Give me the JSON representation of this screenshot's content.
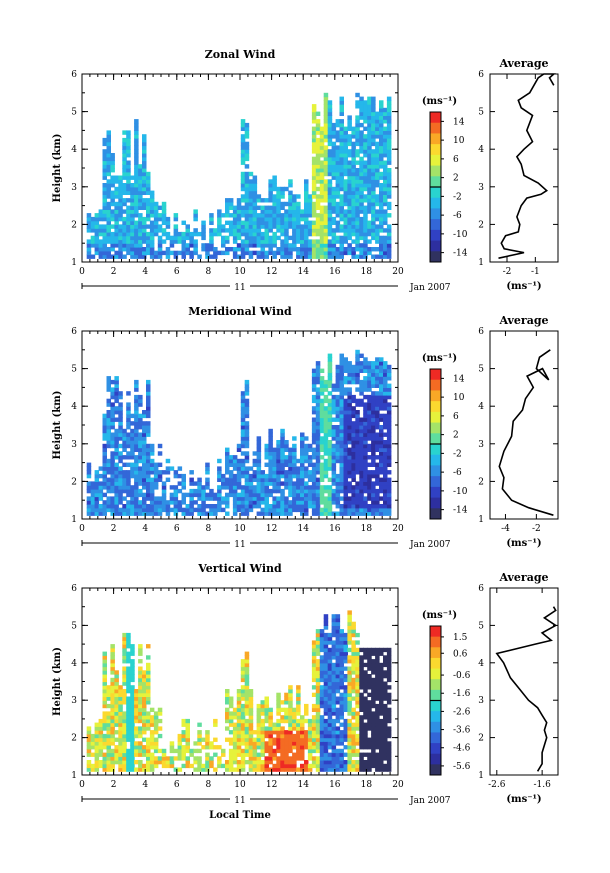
{
  "chart_data": [
    {
      "type": "heatmap",
      "title": "Zonal Wind",
      "ylabel": "Height (km)",
      "y_ticks": [
        "1",
        "2",
        "3",
        "4",
        "5",
        "6"
      ],
      "ylim": [
        1,
        6
      ],
      "x_ticks": [
        "0",
        "2",
        "4",
        "6",
        "8",
        "10",
        "12",
        "14",
        "16",
        "18",
        "20"
      ],
      "xlim": [
        0,
        20
      ],
      "date_label": "11",
      "date_suffix": "Jan 2007",
      "colorbar": {
        "unit": "(ms⁻¹)",
        "ticks": [
          "14",
          "10",
          "6",
          "2",
          "-2",
          "-6",
          "-10",
          "-14"
        ],
        "range": [
          -16,
          16
        ]
      },
      "profile": {
        "title": "Average",
        "x_ticks": [
          "-2",
          "-1"
        ],
        "xlim": [
          -2.6,
          -0.2
        ],
        "xlabel": "(ms⁻¹)",
        "y_ticks": [
          "1",
          "2",
          "3",
          "4",
          "5",
          "6"
        ],
        "points": [
          [
            -2.3,
            1.1
          ],
          [
            -1.4,
            1.25
          ],
          [
            -2.1,
            1.35
          ],
          [
            -2.2,
            1.5
          ],
          [
            -2.05,
            1.7
          ],
          [
            -1.6,
            1.8
          ],
          [
            -1.55,
            2.0
          ],
          [
            -1.65,
            2.2
          ],
          [
            -1.5,
            2.5
          ],
          [
            -1.3,
            2.7
          ],
          [
            -0.8,
            2.8
          ],
          [
            -0.6,
            2.9
          ],
          [
            -0.9,
            3.1
          ],
          [
            -1.4,
            3.3
          ],
          [
            -1.5,
            3.6
          ],
          [
            -1.65,
            3.8
          ],
          [
            -1.4,
            4.0
          ],
          [
            -1.1,
            4.2
          ],
          [
            -1.3,
            4.5
          ],
          [
            -1.1,
            4.9
          ],
          [
            -1.5,
            5.1
          ],
          [
            -1.6,
            5.3
          ],
          [
            -1.2,
            5.5
          ],
          [
            -0.9,
            5.9
          ],
          [
            -0.7,
            6.0
          ],
          [
            -0.35,
            6.0
          ],
          [
            -0.5,
            5.9
          ],
          [
            -0.35,
            5.7
          ]
        ]
      }
    },
    {
      "type": "heatmap",
      "title": "Meridional Wind",
      "ylabel": "Height (km)",
      "y_ticks": [
        "1",
        "2",
        "3",
        "4",
        "5",
        "6"
      ],
      "ylim": [
        1,
        6
      ],
      "x_ticks": [
        "0",
        "2",
        "4",
        "6",
        "8",
        "10",
        "12",
        "14",
        "16",
        "18",
        "20"
      ],
      "xlim": [
        0,
        20
      ],
      "date_label": "11",
      "date_suffix": "Jan 2007",
      "colorbar": {
        "unit": "(ms⁻¹)",
        "ticks": [
          "14",
          "10",
          "6",
          "2",
          "-2",
          "-6",
          "-10",
          "-14"
        ],
        "range": [
          -16,
          16
        ]
      },
      "profile": {
        "title": "Average",
        "x_ticks": [
          "-4",
          "-2"
        ],
        "xlim": [
          -5.0,
          -0.6
        ],
        "xlabel": "(ms⁻¹)",
        "y_ticks": [
          "1",
          "2",
          "3",
          "4",
          "5",
          "6"
        ],
        "points": [
          [
            -0.9,
            1.1
          ],
          [
            -2.5,
            1.3
          ],
          [
            -3.6,
            1.5
          ],
          [
            -4.2,
            1.8
          ],
          [
            -4.1,
            2.1
          ],
          [
            -4.4,
            2.4
          ],
          [
            -4.1,
            2.8
          ],
          [
            -3.6,
            3.2
          ],
          [
            -3.5,
            3.6
          ],
          [
            -2.9,
            3.9
          ],
          [
            -2.7,
            4.2
          ],
          [
            -2.2,
            4.5
          ],
          [
            -2.6,
            4.8
          ],
          [
            -1.6,
            5.0
          ],
          [
            -1.2,
            4.7
          ],
          [
            -2.0,
            5.0
          ],
          [
            -1.8,
            5.3
          ],
          [
            -1.1,
            5.5
          ]
        ]
      }
    },
    {
      "type": "heatmap",
      "title": "Vertical Wind",
      "ylabel": "Height (km)",
      "xlabel": "Local Time",
      "y_ticks": [
        "1",
        "2",
        "3",
        "4",
        "5",
        "6"
      ],
      "ylim": [
        1,
        6
      ],
      "x_ticks": [
        "0",
        "2",
        "4",
        "6",
        "8",
        "10",
        "12",
        "14",
        "16",
        "18",
        "20"
      ],
      "xlim": [
        0,
        20
      ],
      "date_label": "11",
      "date_suffix": "Jan 2007",
      "colorbar": {
        "unit": "(ms⁻¹)",
        "ticks": [
          "1.5",
          "0.6",
          "-0.6",
          "-1.6",
          "-2.6",
          "-3.6",
          "-4.6",
          "-5.6"
        ],
        "range": [
          -6.1,
          2.1
        ]
      },
      "profile": {
        "title": "Average",
        "x_ticks": [
          "-2.6",
          "-1.6"
        ],
        "xlim": [
          -2.75,
          -1.25
        ],
        "xlabel": "(ms⁻¹)",
        "y_ticks": [
          "1",
          "2",
          "3",
          "4",
          "5",
          "6"
        ],
        "points": [
          [
            -1.7,
            1.1
          ],
          [
            -1.6,
            1.3
          ],
          [
            -1.6,
            1.6
          ],
          [
            -1.55,
            1.8
          ],
          [
            -1.5,
            2.0
          ],
          [
            -1.55,
            2.2
          ],
          [
            -1.5,
            2.4
          ],
          [
            -1.6,
            2.6
          ],
          [
            -1.7,
            2.8
          ],
          [
            -1.9,
            3.0
          ],
          [
            -2.1,
            3.3
          ],
          [
            -2.3,
            3.6
          ],
          [
            -2.45,
            4.0
          ],
          [
            -2.6,
            4.25
          ],
          [
            -1.75,
            4.5
          ],
          [
            -1.4,
            4.6
          ],
          [
            -1.6,
            4.8
          ],
          [
            -1.3,
            5.0
          ],
          [
            -1.55,
            5.2
          ],
          [
            -1.3,
            5.4
          ],
          [
            -1.35,
            5.5
          ]
        ]
      }
    }
  ]
}
